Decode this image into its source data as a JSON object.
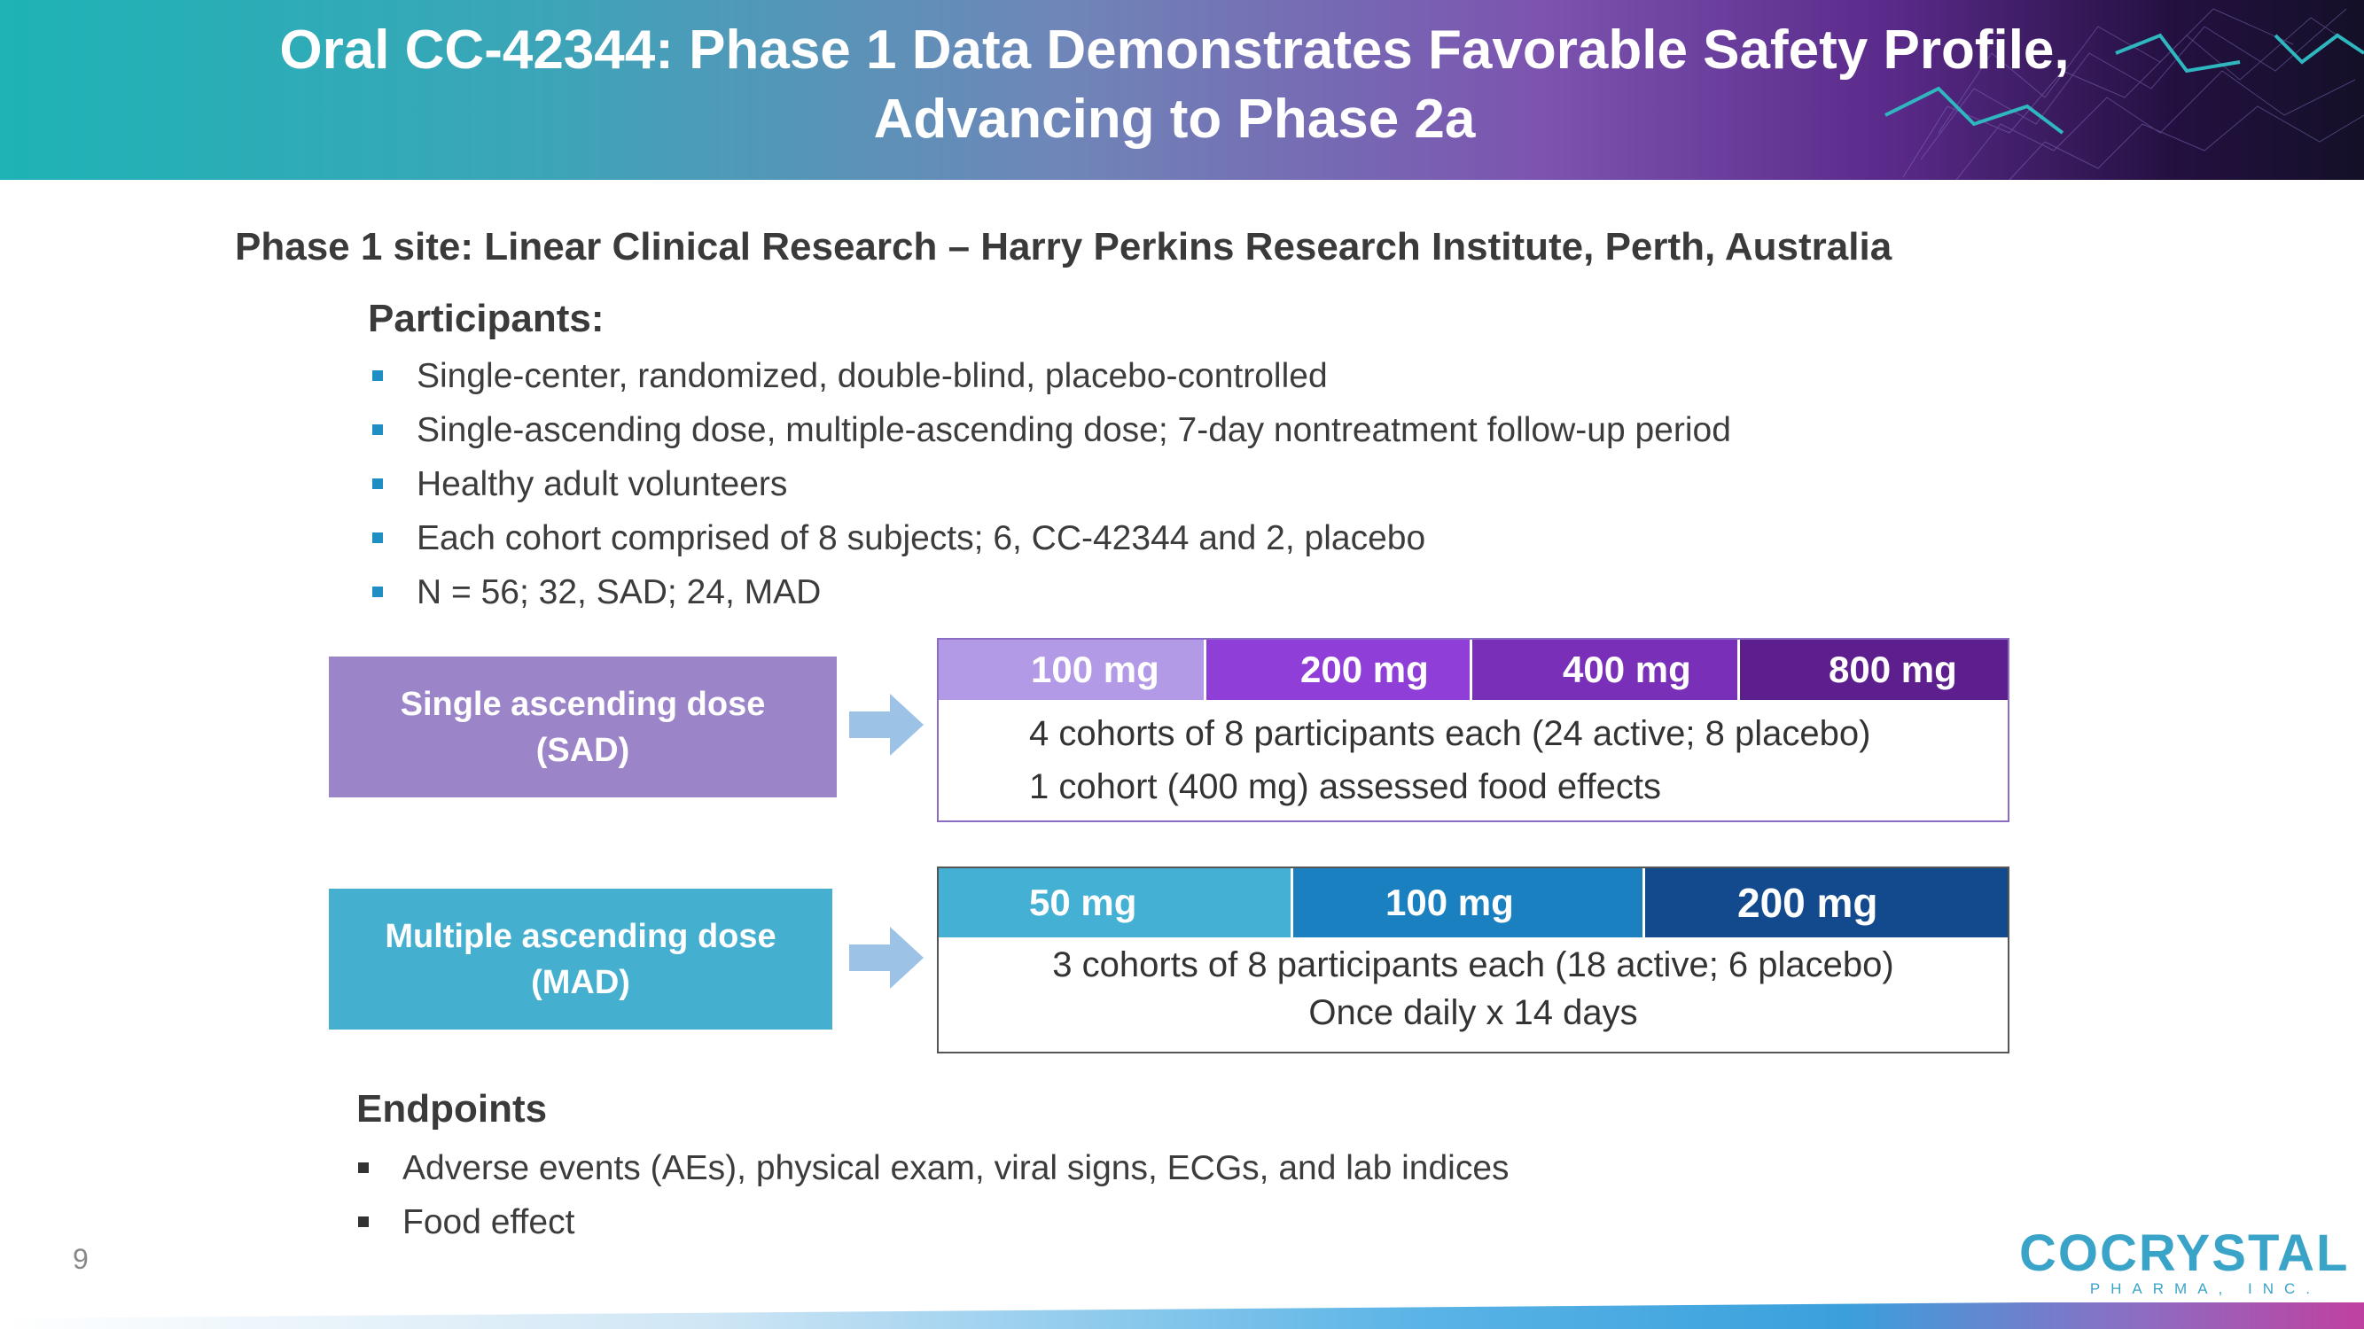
{
  "header": {
    "title_line1": "Oral CC-42344: Phase 1 Data Demonstrates Favorable Safety Profile,",
    "title_line2": "Advancing to Phase 2a"
  },
  "site": "Phase 1 site: Linear Clinical Research – Harry Perkins Research Institute, Perth, Australia",
  "participants": {
    "heading": "Participants:",
    "items": [
      "Single-center, randomized, double-blind, placebo-controlled",
      "Single-ascending dose, multiple-ascending dose; 7-day nontreatment follow-up period",
      "Healthy adult volunteers",
      "Each cohort comprised of 8 subjects; 6, CC-42344 and 2, placebo",
      "N = 56; 32, SAD; 24, MAD"
    ]
  },
  "sad": {
    "label_line1": "Single ascending dose",
    "label_line2": "(SAD)",
    "doses": [
      "100 mg",
      "200  mg",
      "400 mg",
      "800 mg"
    ],
    "desc_line1": "4 cohorts of 8 participants each (24 active; 8 placebo)",
    "desc_line2": "1 cohort (400 mg) assessed food effects",
    "colors": [
      "#b08ee0",
      "#8f3fd8",
      "#7a2fb8",
      "#5e1f8e"
    ]
  },
  "mad": {
    "label_line1": "Multiple ascending dose",
    "label_line2": "(MAD)",
    "doses": [
      "50 mg",
      "100 mg",
      "200 mg"
    ],
    "desc_line1": "3 cohorts of 8 participants each (18 active; 6 placebo)",
    "desc_line2": "Once daily x 14 days",
    "colors": [
      "#44b0d4",
      "#1a80c0",
      "#134a8e"
    ]
  },
  "endpoints": {
    "heading": "Endpoints",
    "items": [
      "Adverse events (AEs), physical exam, viral signs, ECGs, and lab indices",
      "Food effect"
    ]
  },
  "page_number": "9",
  "logo": {
    "name": "COCRYSTAL",
    "tagline": "PHARMA, INC."
  }
}
